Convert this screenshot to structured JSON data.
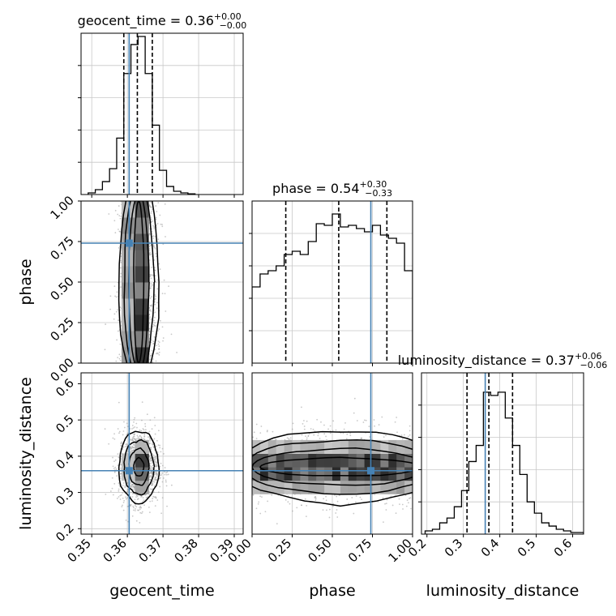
{
  "chart_data": {
    "type": "corner",
    "parameters": [
      "geocent_time",
      "phase",
      "luminosity_distance"
    ],
    "truths": {
      "geocent_time": 0.3605,
      "phase": 0.74,
      "luminosity_distance": 0.36
    },
    "truth_color": "#4682b4",
    "grid": true,
    "panels": [
      {
        "id": "hist_geocent_time",
        "type": "histogram",
        "param": "geocent_time",
        "title": {
          "name": "geocent_time",
          "value": "0.36",
          "upper": "+0.00",
          "lower": "−0.00"
        },
        "xlim": [
          0.347,
          0.3925
        ],
        "ylim": [
          0,
          1.0
        ],
        "bin_edges": [
          0.349,
          0.351,
          0.353,
          0.355,
          0.357,
          0.359,
          0.361,
          0.363,
          0.365,
          0.367,
          0.369,
          0.371,
          0.373,
          0.375,
          0.377,
          0.379
        ],
        "counts": [
          0.01,
          0.03,
          0.08,
          0.16,
          0.35,
          0.75,
          0.93,
          0.98,
          0.75,
          0.43,
          0.15,
          0.05,
          0.02,
          0.01,
          0.004
        ],
        "quantiles": [
          0.359,
          0.3628,
          0.367
        ],
        "show_x_ticklabels": false
      },
      {
        "id": "hist_phase",
        "type": "histogram",
        "param": "phase",
        "title": {
          "name": "phase",
          "value": "0.54",
          "upper": "+0.30",
          "lower": "−0.33"
        },
        "xlim": [
          0,
          1
        ],
        "ylim": [
          0,
          1.0
        ],
        "bin_edges": [
          0,
          0.05,
          0.1,
          0.15,
          0.2,
          0.25,
          0.3,
          0.35,
          0.4,
          0.45,
          0.5,
          0.55,
          0.6,
          0.65,
          0.7,
          0.75,
          0.8,
          0.85,
          0.9,
          0.95,
          1.0
        ],
        "counts": [
          0.47,
          0.55,
          0.57,
          0.6,
          0.67,
          0.69,
          0.67,
          0.75,
          0.86,
          0.85,
          0.92,
          0.84,
          0.85,
          0.83,
          0.81,
          0.85,
          0.79,
          0.77,
          0.74,
          0.57
        ],
        "quantiles": [
          0.21,
          0.54,
          0.84
        ],
        "show_x_ticklabels": false
      },
      {
        "id": "hist_luminosity_distance",
        "type": "histogram",
        "param": "luminosity_distance",
        "title": {
          "name": "luminosity_distance",
          "value": "0.37",
          "upper": "+0.06",
          "lower": "−0.06"
        },
        "xlim": [
          0.185,
          0.63
        ],
        "ylim": [
          0,
          1.0
        ],
        "bin_edges": [
          0.195,
          0.215,
          0.235,
          0.255,
          0.275,
          0.295,
          0.315,
          0.335,
          0.355,
          0.375,
          0.395,
          0.415,
          0.435,
          0.455,
          0.475,
          0.495,
          0.515,
          0.535,
          0.555,
          0.575,
          0.595,
          0.615,
          0.63
        ],
        "counts": [
          0.02,
          0.03,
          0.07,
          0.1,
          0.17,
          0.27,
          0.45,
          0.55,
          0.88,
          0.86,
          0.88,
          0.72,
          0.55,
          0.37,
          0.2,
          0.13,
          0.07,
          0.05,
          0.03,
          0.02,
          0.01,
          0.01
        ],
        "quantiles": [
          0.31,
          0.37,
          0.435
        ],
        "x_ticks": [
          "0.2",
          "0.3",
          "0.4",
          "0.5",
          "0.6"
        ],
        "x_tick_values": [
          0.2,
          0.3,
          0.4,
          0.5,
          0.6
        ],
        "xlabel": "luminosity_distance"
      },
      {
        "id": "scatter_geocent_time_phase",
        "type": "2d_density",
        "x": "geocent_time",
        "y": "phase",
        "xlim": [
          0.347,
          0.3925
        ],
        "ylim": [
          0,
          1.0
        ],
        "center": [
          0.3632,
          0.5
        ],
        "spread": [
          0.0028,
          1.0
        ],
        "y_ticks": [
          "0.00",
          "0.25",
          "0.50",
          "0.75",
          "1.00"
        ],
        "y_tick_values": [
          0,
          0.25,
          0.5,
          0.75,
          1.0
        ],
        "ylabel": "phase"
      },
      {
        "id": "scatter_geocent_time_luminosity_distance",
        "type": "2d_density",
        "x": "geocent_time",
        "y": "luminosity_distance",
        "xlim": [
          0.347,
          0.3925
        ],
        "ylim": [
          0.185,
          0.63
        ],
        "center": [
          0.3632,
          0.37
        ],
        "spread": [
          0.0028,
          0.05
        ],
        "x_ticks": [
          "0.35",
          "0.36",
          "0.37",
          "0.38",
          "0.39"
        ],
        "x_tick_values": [
          0.35,
          0.36,
          0.37,
          0.38,
          0.39
        ],
        "y_ticks": [
          "0.2",
          "0.3",
          "0.4",
          "0.5",
          "0.6"
        ],
        "y_tick_values": [
          0.2,
          0.3,
          0.4,
          0.5,
          0.6
        ],
        "xlabel": "geocent_time",
        "ylabel": "luminosity_distance"
      },
      {
        "id": "scatter_phase_luminosity_distance",
        "type": "2d_density",
        "x": "phase",
        "y": "luminosity_distance",
        "xlim": [
          0,
          1
        ],
        "ylim": [
          0.185,
          0.63
        ],
        "center": [
          0.55,
          0.37
        ],
        "spread": [
          1.0,
          0.05
        ],
        "x_ticks": [
          "0.00",
          "0.25",
          "0.50",
          "0.75",
          "1.00"
        ],
        "x_tick_values": [
          0,
          0.25,
          0.5,
          0.75,
          1.0
        ],
        "xlabel": "phase"
      }
    ]
  }
}
